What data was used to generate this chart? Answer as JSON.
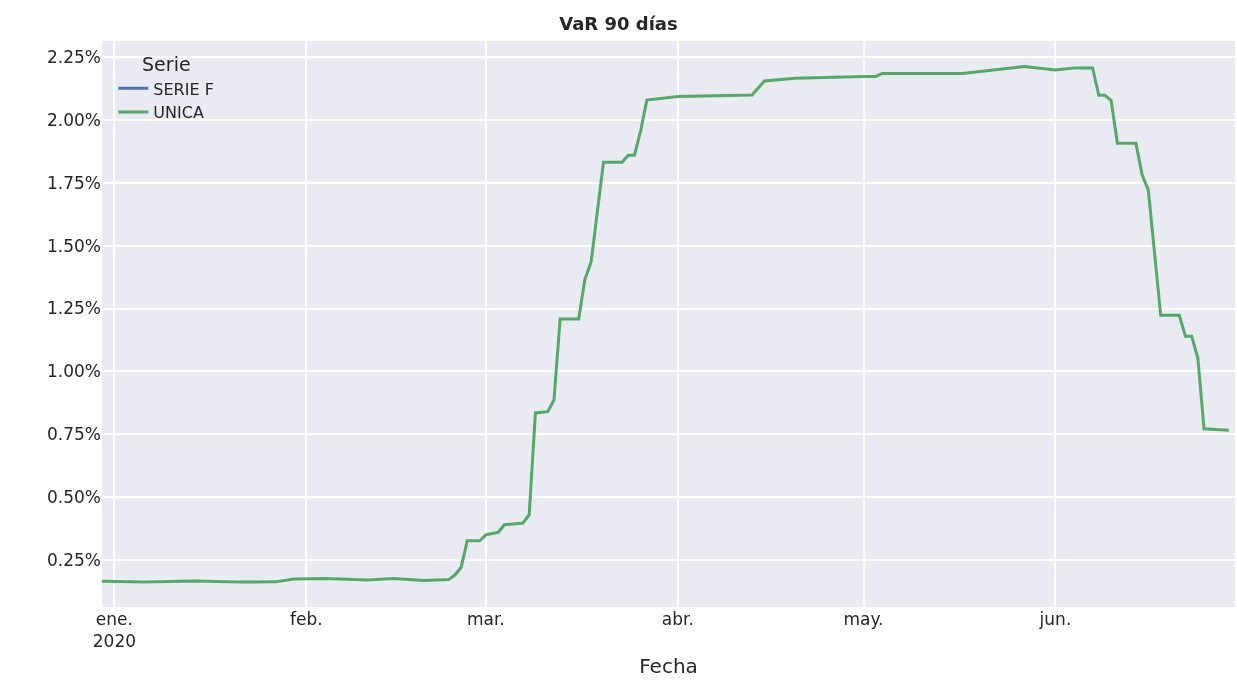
{
  "chart_data": {
    "type": "line",
    "title": "VaR 90 días",
    "xlabel": "Fecha",
    "legend_title": "Serie",
    "x": [
      "2019-12-30",
      "2020-01-06",
      "2020-01-14",
      "2020-01-21",
      "2020-01-27",
      "2020-01-30",
      "2020-02-04",
      "2020-02-11",
      "2020-02-15",
      "2020-02-20",
      "2020-02-24",
      "2020-02-25",
      "2020-02-26",
      "2020-02-27",
      "2020-02-29",
      "2020-03-01",
      "2020-03-03",
      "2020-03-04",
      "2020-03-07",
      "2020-03-08",
      "2020-03-09",
      "2020-03-11",
      "2020-03-12",
      "2020-03-13",
      "2020-03-16",
      "2020-03-17",
      "2020-03-18",
      "2020-03-20",
      "2020-03-23",
      "2020-03-24",
      "2020-03-25",
      "2020-03-26",
      "2020-03-27",
      "2020-04-01",
      "2020-04-13",
      "2020-04-15",
      "2020-04-20",
      "2020-05-01",
      "2020-05-03",
      "2020-05-04",
      "2020-05-17",
      "2020-05-22",
      "2020-05-27",
      "2020-06-01",
      "2020-06-04",
      "2020-06-07",
      "2020-06-08",
      "2020-06-09",
      "2020-06-10",
      "2020-06-11",
      "2020-06-14",
      "2020-06-15",
      "2020-06-16",
      "2020-06-18",
      "2020-06-21",
      "2020-06-22",
      "2020-06-23",
      "2020-06-24",
      "2020-06-25",
      "2020-06-29"
    ],
    "series": [
      {
        "name": "SERIE F",
        "color": "#4c72b0",
        "values": [
          null,
          null,
          null,
          null,
          null,
          null,
          null,
          null,
          null,
          null,
          null,
          null,
          null,
          null,
          null,
          null,
          null,
          null,
          null,
          null,
          null,
          null,
          null,
          null,
          null,
          null,
          null,
          null,
          null,
          null,
          null,
          null,
          null,
          null,
          null,
          null,
          null,
          null,
          null,
          null,
          null,
          null,
          null,
          null,
          null,
          null,
          null,
          null,
          null,
          null,
          null,
          null,
          null,
          null,
          null,
          null,
          null,
          null,
          null,
          null
        ]
      },
      {
        "name": "UNICA",
        "color": "#55a868",
        "values": [
          0.165,
          0.162,
          0.166,
          0.162,
          0.163,
          0.174,
          0.176,
          0.17,
          0.176,
          0.168,
          0.172,
          0.19,
          0.22,
          0.326,
          0.326,
          0.35,
          0.36,
          0.39,
          0.397,
          0.43,
          0.835,
          0.84,
          0.886,
          1.208,
          1.208,
          1.367,
          1.435,
          1.832,
          1.832,
          1.86,
          1.86,
          1.956,
          2.079,
          2.093,
          2.099,
          2.155,
          2.166,
          2.173,
          2.173,
          2.185,
          2.185,
          2.199,
          2.213,
          2.199,
          2.207,
          2.207,
          2.098,
          2.098,
          2.077,
          1.907,
          1.907,
          1.782,
          1.721,
          1.223,
          1.223,
          1.14,
          1.14,
          1.053,
          0.772,
          0.766
        ]
      }
    ],
    "xlim": [
      "2019-12-30",
      "2020-06-30"
    ],
    "xticks": [
      {
        "value": "2020-01-01",
        "label": "ene.\n2020"
      },
      {
        "value": "2020-02-01",
        "label": "feb."
      },
      {
        "value": "2020-03-01",
        "label": "mar."
      },
      {
        "value": "2020-04-01",
        "label": "abr."
      },
      {
        "value": "2020-05-01",
        "label": "may."
      },
      {
        "value": "2020-06-01",
        "label": "jun."
      }
    ],
    "ylim": [
      0.063,
      2.314
    ],
    "yticks": [
      {
        "value": 0.25,
        "label": "0.25%"
      },
      {
        "value": 0.5,
        "label": "0.50%"
      },
      {
        "value": 0.75,
        "label": "0.75%"
      },
      {
        "value": 1.0,
        "label": "1.00%"
      },
      {
        "value": 1.25,
        "label": "1.25%"
      },
      {
        "value": 1.5,
        "label": "1.50%"
      },
      {
        "value": 1.75,
        "label": "1.75%"
      },
      {
        "value": 2.0,
        "label": "2.00%"
      },
      {
        "value": 2.25,
        "label": "2.25%"
      }
    ],
    "grid": true,
    "legend": "top left",
    "marker": "none",
    "line_style": "solid"
  }
}
